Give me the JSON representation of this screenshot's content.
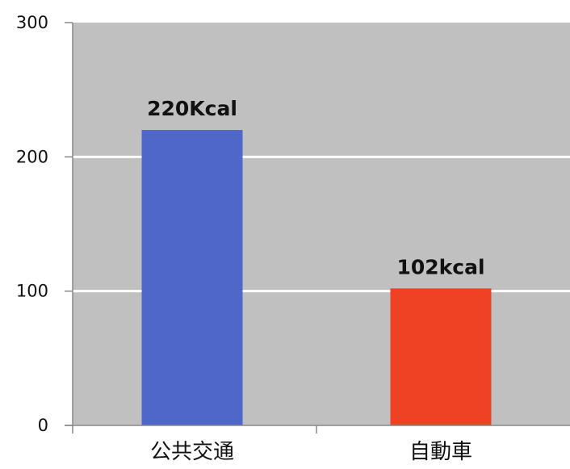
{
  "chart_data": {
    "type": "bar",
    "categories": [
      "公共交通",
      "自動車"
    ],
    "values": [
      220,
      102
    ],
    "data_labels": [
      "220Kcal",
      "102kcal"
    ],
    "bar_colors": [
      "#4f67c8",
      "#ef4124"
    ],
    "title": "",
    "xlabel": "",
    "ylabel": "",
    "ylim": [
      0,
      300
    ],
    "yticks": [
      0,
      100,
      200,
      300
    ],
    "ytick_labels": [
      "0",
      "100",
      "200",
      "300"
    ],
    "grid": true,
    "grid_color": "#ffffff",
    "plot_background": "#c0c0c0",
    "axis_color": "#888888",
    "legend": "none"
  }
}
